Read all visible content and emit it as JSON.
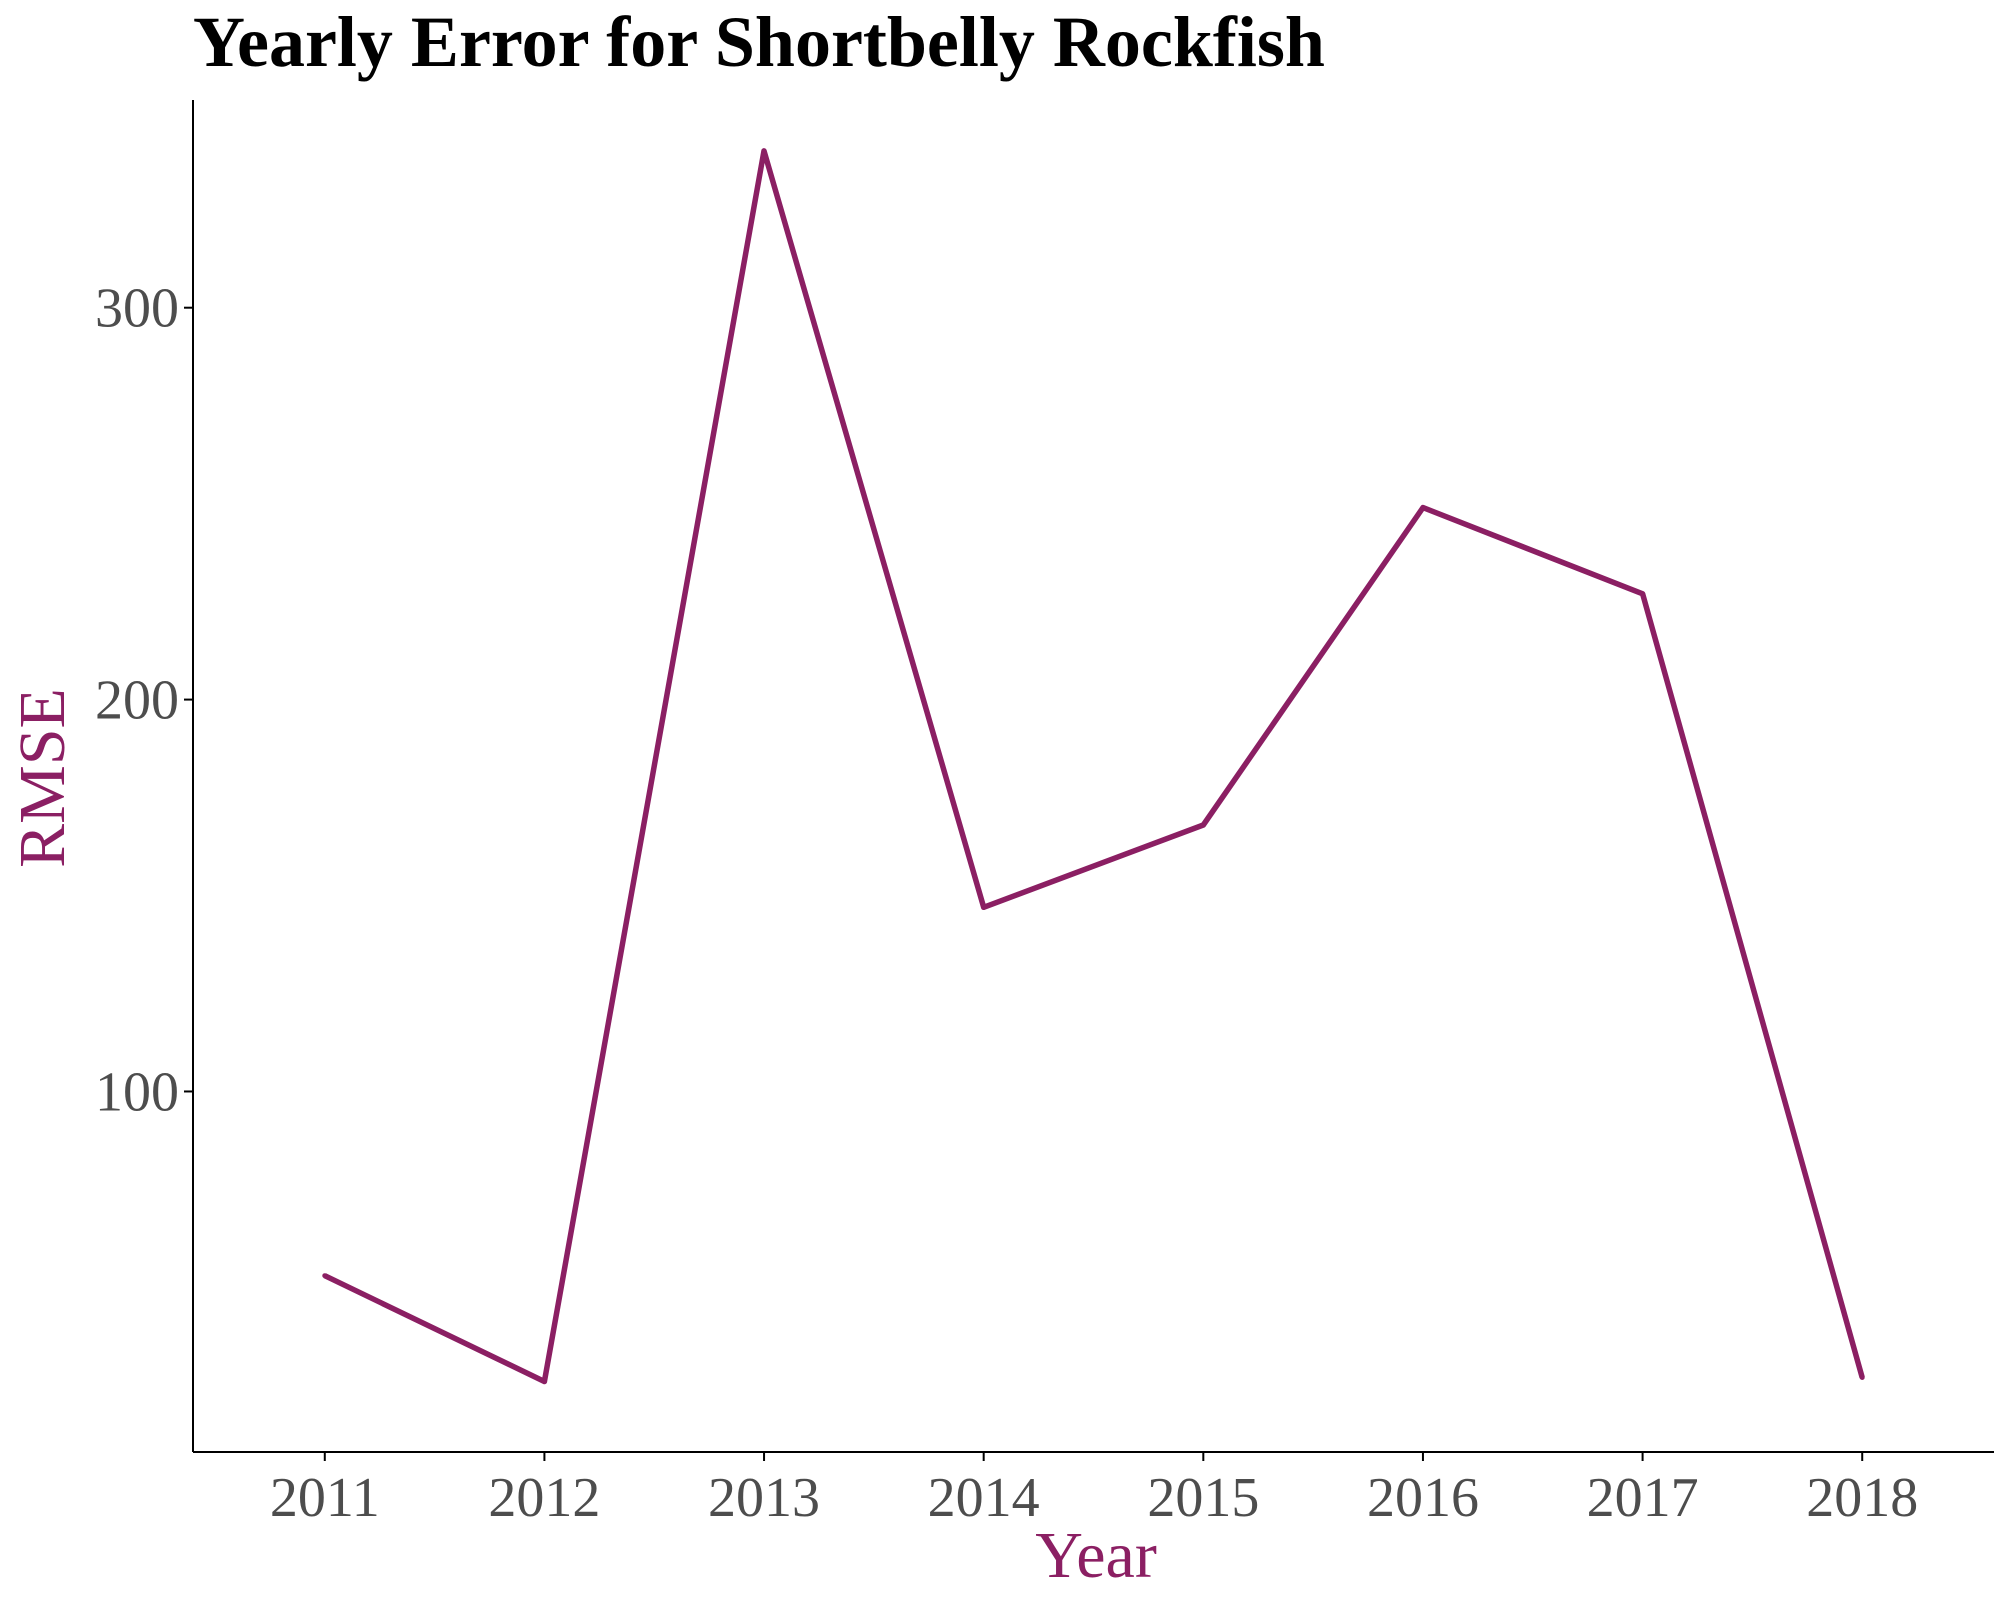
{
  "chart_data": {
    "type": "line",
    "title": "Yearly Error for Shortbelly Rockfish",
    "xlabel": "Year",
    "ylabel": "RMSE",
    "x": [
      2011,
      2012,
      2013,
      2014,
      2015,
      2016,
      2017,
      2018
    ],
    "x_tick_labels": [
      "2011",
      "2012",
      "2013",
      "2014",
      "2015",
      "2016",
      "2017",
      "2018"
    ],
    "y_ticks": [
      100,
      200,
      300
    ],
    "y_tick_labels": [
      "100",
      "200",
      "300"
    ],
    "xlim": [
      2010.4,
      2018.6
    ],
    "ylim": [
      8,
      353
    ],
    "series": [
      {
        "values": [
          53,
          26,
          340,
          147,
          168,
          249,
          227,
          27
        ]
      }
    ],
    "grid": false,
    "legend": "none",
    "colors": {
      "series": "#8b1f63",
      "axis_title": "#8b1f63",
      "title": "#000000",
      "tick_label": "#4d4d4d",
      "axis_line": "#000000"
    }
  }
}
